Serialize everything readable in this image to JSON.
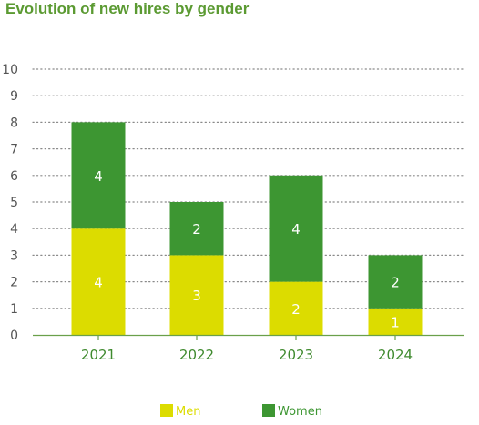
{
  "chart_data": {
    "type": "bar",
    "stacked": true,
    "title": "Evolution of new hires by gender",
    "xlabel": "",
    "ylabel": "",
    "categories": [
      "2021",
      "2022",
      "2023",
      "2024"
    ],
    "series": [
      {
        "name": "Men",
        "values": [
          4,
          3,
          2,
          1
        ],
        "color": "#dcdc00",
        "label_color": "#dcdc00"
      },
      {
        "name": "Women",
        "values": [
          4,
          2,
          4,
          2
        ],
        "color": "#3d9632",
        "label_color": "#3d9632"
      }
    ],
    "ylim": [
      0,
      10
    ],
    "yticks": [
      0,
      1,
      2,
      3,
      4,
      5,
      6,
      7,
      8,
      9,
      10
    ],
    "grid": true,
    "legend_position": "bottom-center"
  }
}
